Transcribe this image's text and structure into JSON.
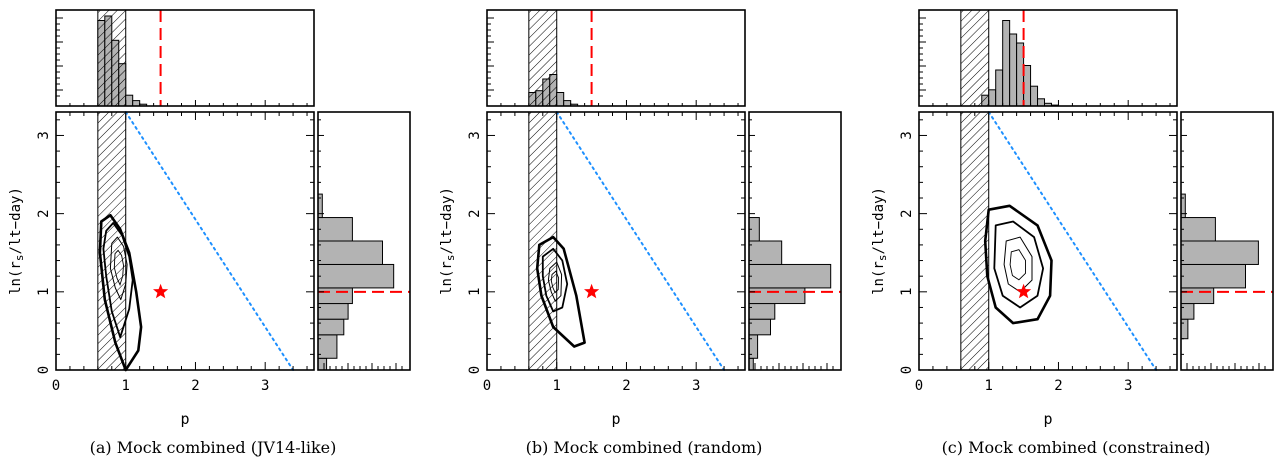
{
  "figure": {
    "panels": [
      {
        "id": "a",
        "caption": "(a)  Mock combined (JV14-like)"
      },
      {
        "id": "b",
        "caption": "(b)  Mock combined (random)"
      },
      {
        "id": "c",
        "caption": "(c)  Mock combined (constrained)"
      }
    ]
  },
  "colors": {
    "truth_marker": "#ff0000",
    "dashed_line": "#ff0000",
    "dotted_line": "#1e90ff",
    "histogram_fill": "#b3b3b3",
    "axes": "#000000"
  },
  "chart_data": [
    {
      "type": "contour",
      "title": "",
      "caption": "(a)  Mock combined (JV14-like)",
      "xlabel": "p",
      "ylabel": "ln(r_s/lt−day)",
      "xlim": [
        0,
        3.7
      ],
      "ylim": [
        0,
        3.3
      ],
      "xticks": [
        "0",
        "1",
        "2",
        "3"
      ],
      "yticks": [
        "0",
        "1",
        "2",
        "3"
      ],
      "truth": {
        "p": 1.5,
        "ln_rs": 1.0
      },
      "excluded_band_p": [
        0.6,
        1.0
      ],
      "dotted_line": [
        [
          1.0,
          3.3
        ],
        [
          3.4,
          0.0
        ]
      ],
      "dashed_truth_lines": {
        "p": 1.5,
        "ln_rs": 1.0
      },
      "contours": [
        {
          "level": "outer",
          "points": [
            [
              0.65,
              1.9
            ],
            [
              0.78,
              1.98
            ],
            [
              0.92,
              1.8
            ],
            [
              1.05,
              1.5
            ],
            [
              1.15,
              1.0
            ],
            [
              1.22,
              0.55
            ],
            [
              1.18,
              0.25
            ],
            [
              1.0,
              0.0
            ],
            [
              0.85,
              0.35
            ],
            [
              0.7,
              0.9
            ],
            [
              0.63,
              1.5
            ]
          ]
        },
        {
          "level": "middle",
          "points": [
            [
              0.72,
              1.78
            ],
            [
              0.82,
              1.88
            ],
            [
              0.95,
              1.72
            ],
            [
              1.05,
              1.45
            ],
            [
              1.1,
              1.15
            ],
            [
              1.05,
              0.78
            ],
            [
              0.92,
              0.42
            ],
            [
              0.8,
              0.75
            ],
            [
              0.72,
              1.2
            ],
            [
              0.68,
              1.55
            ]
          ]
        },
        {
          "level": "inner",
          "points": [
            [
              0.8,
              1.62
            ],
            [
              0.88,
              1.7
            ],
            [
              0.97,
              1.58
            ],
            [
              1.02,
              1.35
            ],
            [
              1.0,
              1.1
            ],
            [
              0.93,
              0.9
            ],
            [
              0.85,
              1.05
            ],
            [
              0.78,
              1.3
            ]
          ]
        }
      ],
      "hist_p": {
        "bin_edges": [
          0.6,
          0.7,
          0.8,
          0.9,
          1.0,
          1.1,
          1.2,
          1.3,
          1.4
        ],
        "counts": [
          0.95,
          1.0,
          0.73,
          0.47,
          0.12,
          0.06,
          0.02,
          0.0
        ]
      },
      "hist_ln_rs": {
        "bin_edges": [
          0.0,
          0.15,
          0.45,
          0.65,
          0.85,
          1.05,
          1.35,
          1.65,
          1.95,
          2.25
        ],
        "counts": [
          0.1,
          0.22,
          0.3,
          0.35,
          0.4,
          0.88,
          0.75,
          0.4,
          0.05
        ]
      }
    },
    {
      "type": "contour",
      "title": "",
      "caption": "(b)  Mock combined (random)",
      "xlabel": "p",
      "ylabel": "ln(r_s/lt−day)",
      "xlim": [
        0,
        3.7
      ],
      "ylim": [
        0,
        3.3
      ],
      "xticks": [
        "0",
        "1",
        "2",
        "3"
      ],
      "yticks": [
        "0",
        "1",
        "2",
        "3"
      ],
      "truth": {
        "p": 1.5,
        "ln_rs": 1.0
      },
      "excluded_band_p": [
        0.6,
        1.0
      ],
      "dotted_line": [
        [
          1.0,
          3.3
        ],
        [
          3.4,
          0.0
        ]
      ],
      "dashed_truth_lines": {
        "p": 1.5,
        "ln_rs": 1.0
      },
      "contours": [
        {
          "level": "outer",
          "points": [
            [
              0.75,
              1.6
            ],
            [
              0.95,
              1.7
            ],
            [
              1.1,
              1.55
            ],
            [
              1.28,
              0.95
            ],
            [
              1.4,
              0.35
            ],
            [
              1.25,
              0.3
            ],
            [
              0.95,
              0.55
            ],
            [
              0.78,
              0.95
            ],
            [
              0.72,
              1.3
            ]
          ]
        },
        {
          "level": "middle",
          "points": [
            [
              0.8,
              1.45
            ],
            [
              0.95,
              1.55
            ],
            [
              1.08,
              1.4
            ],
            [
              1.15,
              1.1
            ],
            [
              1.08,
              0.8
            ],
            [
              0.95,
              0.75
            ],
            [
              0.85,
              0.95
            ],
            [
              0.8,
              1.2
            ]
          ]
        },
        {
          "level": "inner",
          "points": [
            [
              0.9,
              1.3
            ],
            [
              1.0,
              1.38
            ],
            [
              1.07,
              1.22
            ],
            [
              1.06,
              0.95
            ],
            [
              0.98,
              0.88
            ],
            [
              0.92,
              1.0
            ],
            [
              0.88,
              1.15
            ]
          ]
        }
      ],
      "hist_p": {
        "bin_edges": [
          0.6,
          0.7,
          0.8,
          0.9,
          1.0,
          1.1,
          1.2,
          1.3,
          1.4
        ],
        "counts": [
          0.15,
          0.17,
          0.3,
          0.35,
          0.15,
          0.06,
          0.02,
          0.0
        ]
      },
      "hist_ln_rs": {
        "bin_edges": [
          0.0,
          0.15,
          0.45,
          0.65,
          0.85,
          1.05,
          1.35,
          1.65,
          1.95,
          2.25
        ],
        "counts": [
          0.05,
          0.1,
          0.25,
          0.3,
          0.65,
          0.95,
          0.38,
          0.12,
          0.0
        ]
      }
    },
    {
      "type": "contour",
      "title": "",
      "caption": "(c)  Mock combined (constrained)",
      "xlabel": "p",
      "ylabel": "ln(r_s/lt−day)",
      "xlim": [
        0,
        3.7
      ],
      "ylim": [
        0,
        3.3
      ],
      "xticks": [
        "0",
        "1",
        "2",
        "3"
      ],
      "yticks": [
        "0",
        "1",
        "2",
        "3"
      ],
      "truth": {
        "p": 1.5,
        "ln_rs": 1.0
      },
      "excluded_band_p": [
        0.6,
        1.0
      ],
      "dotted_line": [
        [
          1.0,
          3.3
        ],
        [
          3.4,
          0.0
        ]
      ],
      "dashed_truth_lines": {
        "p": 1.5,
        "ln_rs": 1.0
      },
      "contours": [
        {
          "level": "outer",
          "points": [
            [
              1.0,
              2.05
            ],
            [
              1.3,
              2.1
            ],
            [
              1.7,
              1.85
            ],
            [
              1.9,
              1.4
            ],
            [
              1.88,
              0.95
            ],
            [
              1.7,
              0.65
            ],
            [
              1.35,
              0.6
            ],
            [
              1.1,
              0.8
            ],
            [
              0.98,
              1.2
            ],
            [
              0.95,
              1.65
            ]
          ]
        },
        {
          "level": "middle",
          "points": [
            [
              1.1,
              1.85
            ],
            [
              1.35,
              1.9
            ],
            [
              1.65,
              1.7
            ],
            [
              1.78,
              1.3
            ],
            [
              1.7,
              0.95
            ],
            [
              1.45,
              0.8
            ],
            [
              1.2,
              0.95
            ],
            [
              1.08,
              1.3
            ]
          ]
        },
        {
          "level": "inner",
          "points": [
            [
              1.25,
              1.65
            ],
            [
              1.45,
              1.7
            ],
            [
              1.62,
              1.45
            ],
            [
              1.62,
              1.15
            ],
            [
              1.45,
              1.0
            ],
            [
              1.28,
              1.1
            ],
            [
              1.22,
              1.35
            ]
          ]
        }
      ],
      "hist_p": {
        "bin_edges": [
          0.9,
          1.0,
          1.1,
          1.2,
          1.3,
          1.4,
          1.5,
          1.6,
          1.7,
          1.8,
          1.9,
          2.0
        ],
        "counts": [
          0.12,
          0.18,
          0.4,
          0.95,
          0.8,
          0.7,
          0.45,
          0.22,
          0.08,
          0.03,
          0.01
        ]
      },
      "hist_ln_rs": {
        "bin_edges": [
          0.4,
          0.65,
          0.85,
          1.05,
          1.35,
          1.65,
          1.95,
          2.25
        ],
        "counts": [
          0.08,
          0.15,
          0.38,
          0.75,
          0.9,
          0.4,
          0.05
        ]
      }
    }
  ]
}
